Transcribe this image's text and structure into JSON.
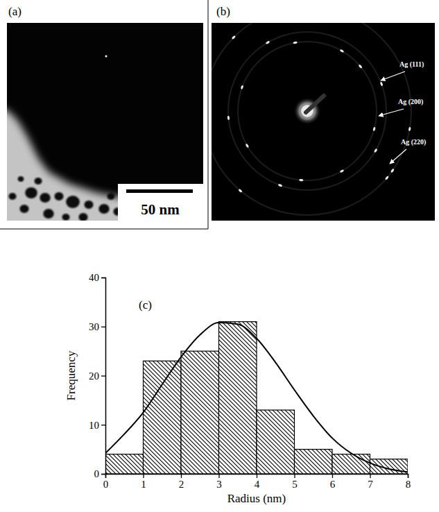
{
  "figure": {
    "panels": [
      {
        "label": "(a)",
        "scale_bar": "50 nm"
      },
      {
        "label": "(b)",
        "annotations": [
          "Ag (111)",
          "Ag (200)",
          "Ag (220)"
        ]
      }
    ]
  },
  "chart_data": {
    "type": "histogram",
    "x_label": "Radius (nm)",
    "y_label": "Frequency",
    "annotations": [
      "(c)"
    ],
    "bins": [
      0,
      1,
      2,
      3,
      4,
      5,
      6,
      7,
      8
    ],
    "values": [
      4,
      23,
      25,
      31,
      13,
      5,
      4,
      3
    ],
    "color": "#000000",
    "xlim": [
      0,
      8
    ],
    "ylim": [
      0,
      40
    ],
    "xticks": [
      0,
      1,
      2,
      3,
      4,
      5,
      6,
      7,
      8
    ],
    "yticks": [
      0,
      10,
      20,
      30,
      40
    ],
    "series": [
      {
        "type": "line",
        "color": "#000000",
        "x": [
          0,
          0.5,
          1,
          1.5,
          2,
          2.5,
          3,
          3.5,
          4,
          4.5,
          5,
          5.5,
          6,
          6.5,
          7,
          7.5,
          8
        ],
        "values": [
          4.2,
          8.1,
          12.5,
          18.2,
          23.8,
          28.3,
          30.8,
          30.5,
          27.6,
          22.7,
          17.1,
          11.8,
          7.3,
          4.2,
          2.2,
          1.0,
          0.4
        ]
      }
    ]
  }
}
